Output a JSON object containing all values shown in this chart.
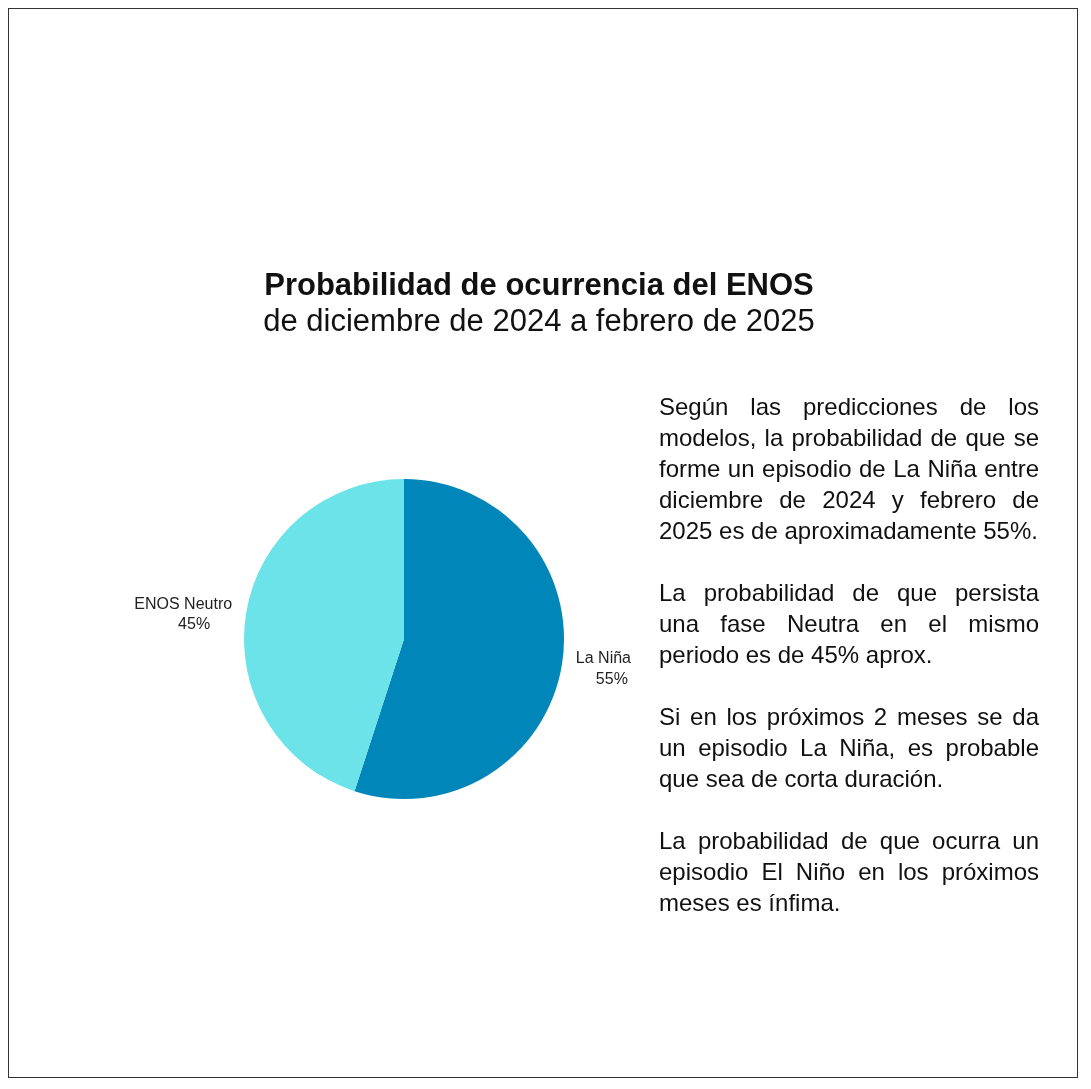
{
  "chart_data": {
    "type": "pie",
    "title": "Probabilidad de ocurrencia  del ENOS",
    "subtitle": "de diciembre de 2024 a febrero de 2025",
    "categories": [
      "La Niña",
      "ENOS Neutro"
    ],
    "values": [
      55,
      45
    ],
    "colors": [
      "#0086b8",
      "#6be3e8"
    ],
    "value_labels": [
      "55%",
      "45%"
    ],
    "legend": false,
    "annotations": [
      "Según las predicciones de los modelos, la probabilidad de que se forme un episodio de La Niña entre diciembre de 2024 y febrero de 2025 es de aproximadamente 55%.",
      "La probabilidad de que persista una fase Neutra en el mismo periodo es de  45% aprox.",
      "Si en los próximos 2 meses se da un episodio La Niña, es probable que sea de corta duración.",
      "La probabilidad de que  ocurra un episodio El Niño en los próximos meses es ínfima."
    ]
  }
}
